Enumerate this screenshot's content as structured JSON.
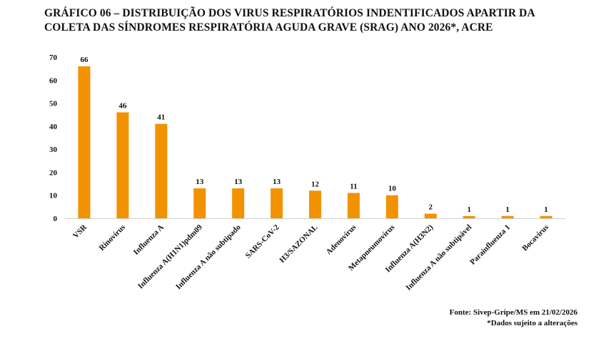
{
  "chart_data": {
    "type": "bar",
    "title_lines": [
      "GRÁFICO 06 – DISTRIBUIÇÃO DOS VIRUS RESPIRATÓRIOS INDENTIFICADOS APARTIR DA",
      "COLETA DAS SÍNDROMES RESPIRATÓRIA AGUDA GRAVE (SRAG) ANO 2026*, ACRE"
    ],
    "categories": [
      "VSR",
      "Rinovírus",
      "Influenza A",
      "Influenza A(H1N1)pdm09",
      "Influenza A não subtipado",
      "SARS-CoV-2",
      "H3/SAZONAL",
      "Adenovírus",
      "Metapneumovírus",
      "Influenza A(H3N2)",
      "Influenza A não subtipável",
      "Parainfluenza 1",
      "Bocavírus"
    ],
    "values": [
      66,
      46,
      41,
      13,
      13,
      13,
      12,
      11,
      10,
      2,
      1,
      1,
      1
    ],
    "ylim": [
      0,
      70
    ],
    "yticks": [
      0,
      10,
      20,
      30,
      40,
      50,
      60,
      70
    ],
    "xlabel": "",
    "ylabel": "",
    "grid": false,
    "legend": "none",
    "bar_color": "#F39200",
    "source": "Fonte: Sivep-Gripe/MS em 21/02/2026",
    "note": "*Dados sujeito a alterações"
  }
}
